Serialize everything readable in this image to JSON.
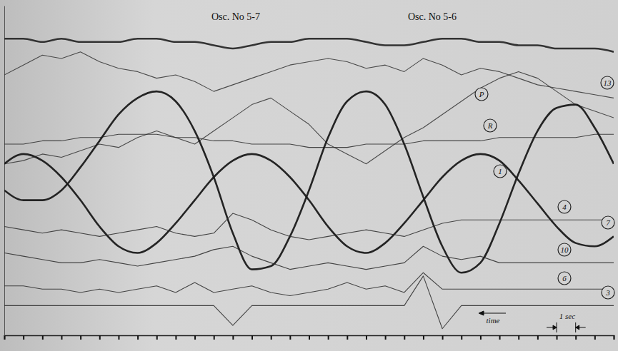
{
  "chart_data": {
    "type": "line",
    "annotations": [
      "Osc. No 5-7",
      "Osc. No 5-6",
      "time",
      "1 sec"
    ],
    "x": [
      0,
      1,
      2,
      3,
      4,
      5,
      6,
      7,
      8,
      9,
      10,
      11,
      12,
      13,
      14,
      15,
      16,
      17,
      18,
      19,
      20,
      21,
      22,
      23,
      24,
      25,
      26,
      27,
      28,
      29,
      30,
      31,
      32
    ],
    "xlim": [
      0,
      32
    ],
    "xticks": [
      0,
      1,
      2,
      3,
      4,
      5,
      6,
      7,
      8,
      9,
      10,
      11,
      12,
      13,
      14,
      15,
      16,
      17,
      18,
      19,
      20,
      21,
      22,
      23,
      24,
      25,
      26,
      27,
      28,
      29,
      30,
      31,
      32
    ],
    "ylim": [
      0,
      100
    ],
    "yticks": [],
    "tick_labels": false,
    "grid": false,
    "series": [
      {
        "color": "#2a2a2a",
        "line_style": "thick",
        "values": [
          90,
          90,
          89,
          90,
          89,
          89,
          89,
          90,
          90,
          89,
          89,
          88,
          87,
          88,
          89,
          89,
          90,
          90,
          90,
          89,
          88,
          88,
          89,
          90,
          90,
          89,
          89,
          88,
          88,
          87,
          87,
          87,
          86
        ]
      },
      {
        "name": "13",
        "color": "#333333",
        "line_style": "thin",
        "values": [
          79,
          82,
          85,
          84,
          86,
          83,
          81,
          80,
          78,
          79,
          77,
          74,
          76,
          78,
          80,
          82,
          83,
          84,
          83,
          81,
          82,
          80,
          84,
          82,
          79,
          81,
          80,
          78,
          76,
          75,
          74,
          73,
          72
        ]
      },
      {
        "name": "P",
        "color": "#333333",
        "line_style": "thin",
        "values": [
          52,
          53,
          55,
          54,
          56,
          58,
          57,
          60,
          62,
          60,
          58,
          62,
          66,
          70,
          72,
          68,
          64,
          58,
          55,
          52,
          56,
          60,
          63,
          67,
          71,
          75,
          78,
          80,
          78,
          74,
          70,
          68,
          66
        ]
      },
      {
        "name": "R",
        "color": "#2a2a2a",
        "line_style": "thin",
        "values": [
          58,
          58,
          59,
          59,
          60,
          60,
          61,
          61,
          61,
          60,
          60,
          59,
          59,
          58,
          58,
          58,
          57,
          57,
          57,
          58,
          58,
          58,
          59,
          59,
          59,
          59,
          60,
          60,
          60,
          60,
          60,
          61,
          61
        ]
      },
      {
        "name": "1",
        "color": "#1a1a1a",
        "line_style": "thick",
        "values": [
          44,
          41,
          41,
          44,
          51,
          59,
          67,
          72,
          74,
          71,
          62,
          48,
          31,
          20,
          21,
          30,
          44,
          60,
          71,
          74,
          70,
          58,
          42,
          27,
          19,
          22,
          34,
          49,
          62,
          69,
          70,
          63,
          52
        ]
      },
      {
        "name": "7",
        "color": "#1a1a1a",
        "line_style": "thick",
        "values": [
          52,
          55,
          53,
          48,
          41,
          33,
          27,
          25,
          28,
          34,
          41,
          48,
          53,
          55,
          53,
          48,
          41,
          33,
          27,
          25,
          28,
          34,
          41,
          48,
          53,
          55,
          53,
          47,
          40,
          33,
          28,
          27,
          30
        ]
      },
      {
        "name": "4",
        "color": "#2a2a2a",
        "line_style": "thin",
        "values": [
          33,
          32,
          31,
          32,
          31,
          30,
          31,
          32,
          33,
          31,
          30,
          31,
          37,
          35,
          32,
          30,
          29,
          30,
          31,
          32,
          31,
          30,
          32,
          34,
          35,
          35,
          35,
          35,
          35,
          35,
          35,
          35,
          35
        ]
      },
      {
        "name": "10",
        "color": "#2a2a2a",
        "line_style": "thin",
        "values": [
          25,
          24,
          23,
          22,
          22,
          23,
          22,
          21,
          22,
          23,
          24,
          26,
          27,
          24,
          22,
          20,
          21,
          22,
          21,
          20,
          21,
          22,
          27,
          24,
          23,
          24,
          22,
          22,
          22,
          22,
          22,
          22,
          22
        ]
      },
      {
        "name": "6",
        "color": "#2a2a2a",
        "line_style": "thin",
        "values": [
          15,
          15,
          14,
          14,
          13,
          14,
          13,
          14,
          15,
          13,
          16,
          13,
          14,
          15,
          13,
          12,
          13,
          14,
          16,
          14,
          15,
          13,
          19,
          14,
          14,
          14,
          14,
          14,
          14,
          14,
          14,
          14,
          14
        ]
      },
      {
        "name": "3",
        "color": "#2a2a2a",
        "line_style": "thin",
        "values": [
          9,
          9,
          9,
          9,
          9,
          9,
          9,
          9,
          9,
          9,
          9,
          9,
          3,
          9,
          9,
          9,
          9,
          9,
          9,
          9,
          9,
          9,
          18,
          2,
          9,
          9,
          9,
          9,
          9,
          9,
          9,
          9,
          9
        ]
      }
    ]
  }
}
